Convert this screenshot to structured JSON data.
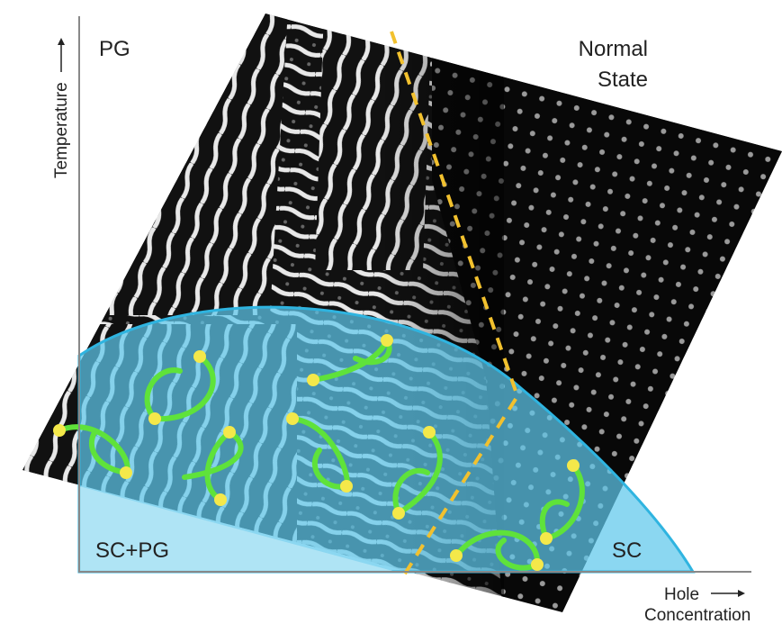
{
  "axes": {
    "y_label": "Temperature",
    "x_label": [
      "Hole",
      "Concentration"
    ]
  },
  "regions": {
    "pg": "PG",
    "normal_state": [
      "Normal",
      "State"
    ],
    "sc_pg": "SC+PG",
    "sc": "SC"
  }
}
